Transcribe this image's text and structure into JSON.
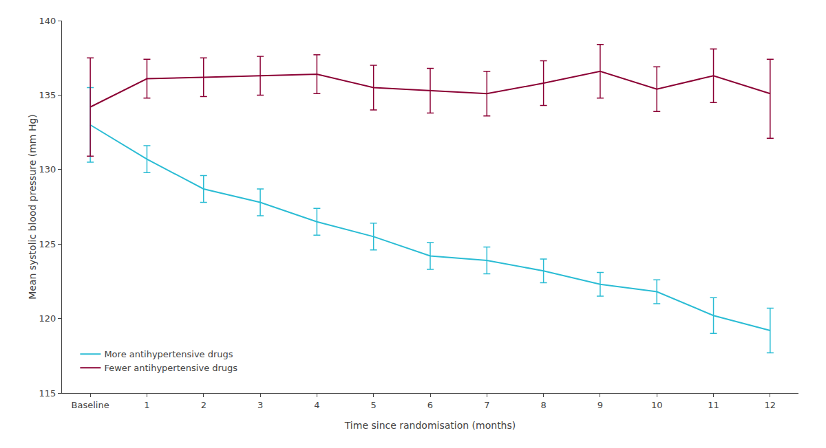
{
  "chart_data": {
    "type": "line",
    "xlabel": "Time since randomisation (months)",
    "ylabel": "Mean systolic blood pressure (mm Hg)",
    "categories": [
      "Baseline",
      "1",
      "2",
      "3",
      "4",
      "5",
      "6",
      "7",
      "8",
      "9",
      "10",
      "11",
      "12"
    ],
    "series": [
      {
        "name": "More antihypertensive drugs",
        "color": "#2ABCD4",
        "values": [
          133.0,
          130.7,
          128.7,
          127.8,
          126.5,
          125.5,
          124.2,
          123.9,
          123.2,
          122.3,
          121.8,
          120.2,
          119.2
        ],
        "error_upper": [
          2.5,
          0.9,
          0.9,
          0.9,
          0.9,
          0.9,
          0.9,
          0.9,
          0.8,
          0.8,
          0.8,
          1.2,
          1.5
        ],
        "error_lower": [
          2.5,
          0.9,
          0.9,
          0.9,
          0.9,
          0.9,
          0.9,
          0.9,
          0.8,
          0.8,
          0.8,
          1.2,
          1.5
        ]
      },
      {
        "name": "Fewer antihypertensive drugs",
        "color": "#8B0034",
        "values": [
          134.2,
          136.1,
          136.2,
          136.3,
          136.4,
          135.5,
          135.3,
          135.1,
          135.8,
          136.6,
          135.4,
          136.3,
          135.1
        ],
        "error_upper": [
          3.3,
          1.3,
          1.3,
          1.3,
          1.3,
          1.5,
          1.5,
          1.5,
          1.5,
          1.8,
          1.5,
          1.8,
          2.3
        ],
        "error_lower": [
          3.3,
          1.3,
          1.3,
          1.3,
          1.3,
          1.5,
          1.5,
          1.5,
          1.5,
          1.8,
          1.5,
          1.8,
          3.0
        ]
      }
    ],
    "ylim": [
      115,
      140
    ],
    "yticks": [
      115,
      120,
      125,
      130,
      135,
      140
    ],
    "grid": false,
    "legend": "lower left"
  }
}
